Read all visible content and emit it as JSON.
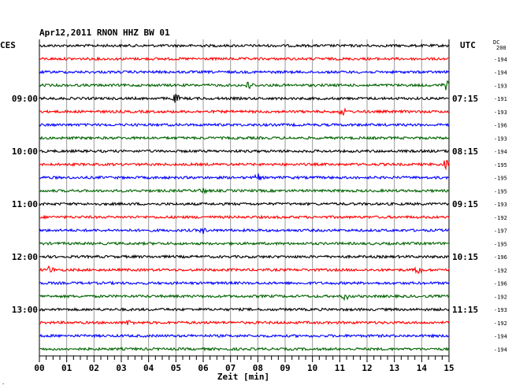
{
  "chart_data": {
    "type": "line",
    "title": "Apr12,2011   RNON HHZ BW 01",
    "left_zone_label": "CES",
    "right_zone_label": "UTC",
    "dc_header": [
      "DC",
      "200"
    ],
    "xlabel": "Zeit [min]",
    "xlim": [
      0,
      15
    ],
    "x_ticks": [
      "00",
      "01",
      "02",
      "03",
      "04",
      "05",
      "06",
      "07",
      "08",
      "09",
      "10",
      "11",
      "12",
      "13",
      "14",
      "15"
    ],
    "left_time_labels": [
      {
        "row": 4,
        "text": "09:00"
      },
      {
        "row": 8,
        "text": "10:00"
      },
      {
        "row": 12,
        "text": "11:00"
      },
      {
        "row": 16,
        "text": "12:00"
      },
      {
        "row": 20,
        "text": "13:00"
      }
    ],
    "right_time_labels": [
      {
        "row": 4,
        "text": "07:15"
      },
      {
        "row": 8,
        "text": "08:15"
      },
      {
        "row": 12,
        "text": "09:15"
      },
      {
        "row": 16,
        "text": "10:15"
      },
      {
        "row": 20,
        "text": "11:15"
      }
    ],
    "dc_values": [
      "-194",
      "-194",
      "-193",
      "-191",
      "-193",
      "-196",
      "-193",
      "-194",
      "-195",
      "-195",
      "-195",
      "-193",
      "-192",
      "-197",
      "-195",
      "-196",
      "-192",
      "-196",
      "-192",
      "-193",
      "-192",
      "-194",
      "-194"
    ],
    "trace_colors": [
      "#000000",
      "#ff0000",
      "#0000ff",
      "#006400"
    ],
    "traces": [
      {
        "row": 0,
        "color": "#000000",
        "events": []
      },
      {
        "row": 1,
        "color": "#ff0000",
        "events": []
      },
      {
        "row": 2,
        "color": "#0000ff",
        "events": []
      },
      {
        "row": 3,
        "color": "#006400",
        "events": [
          {
            "t": 7.7,
            "amp": 5
          },
          {
            "t": 14.9,
            "amp": 5
          }
        ]
      },
      {
        "row": 4,
        "color": "#000000",
        "events": [
          {
            "t": 5.0,
            "amp": 5
          }
        ]
      },
      {
        "row": 5,
        "color": "#ff0000",
        "events": [
          {
            "t": 11.1,
            "amp": 4
          }
        ]
      },
      {
        "row": 6,
        "color": "#0000ff",
        "events": []
      },
      {
        "row": 7,
        "color": "#006400",
        "events": []
      },
      {
        "row": 8,
        "color": "#000000",
        "events": []
      },
      {
        "row": 9,
        "color": "#ff0000",
        "events": [
          {
            "t": 14.9,
            "amp": 7
          }
        ]
      },
      {
        "row": 10,
        "color": "#0000ff",
        "events": [
          {
            "t": 8.0,
            "amp": 4
          }
        ]
      },
      {
        "row": 11,
        "color": "#006400",
        "events": [
          {
            "t": 6.0,
            "amp": 3
          }
        ]
      },
      {
        "row": 12,
        "color": "#000000",
        "events": []
      },
      {
        "row": 13,
        "color": "#ff0000",
        "events": []
      },
      {
        "row": 14,
        "color": "#0000ff",
        "events": [
          {
            "t": 6.0,
            "amp": 3
          }
        ]
      },
      {
        "row": 15,
        "color": "#006400",
        "events": []
      },
      {
        "row": 16,
        "color": "#000000",
        "events": []
      },
      {
        "row": 17,
        "color": "#ff0000",
        "events": [
          {
            "t": 0.4,
            "amp": 5
          },
          {
            "t": 13.9,
            "amp": 6
          }
        ]
      },
      {
        "row": 18,
        "color": "#0000ff",
        "events": []
      },
      {
        "row": 19,
        "color": "#006400",
        "events": [
          {
            "t": 11.2,
            "amp": 4
          }
        ]
      },
      {
        "row": 20,
        "color": "#000000",
        "events": []
      },
      {
        "row": 21,
        "color": "#ff0000",
        "events": [
          {
            "t": 3.3,
            "amp": 3
          }
        ]
      },
      {
        "row": 22,
        "color": "#0000ff",
        "events": []
      },
      {
        "row": 23,
        "color": "#006400",
        "events": []
      }
    ]
  }
}
